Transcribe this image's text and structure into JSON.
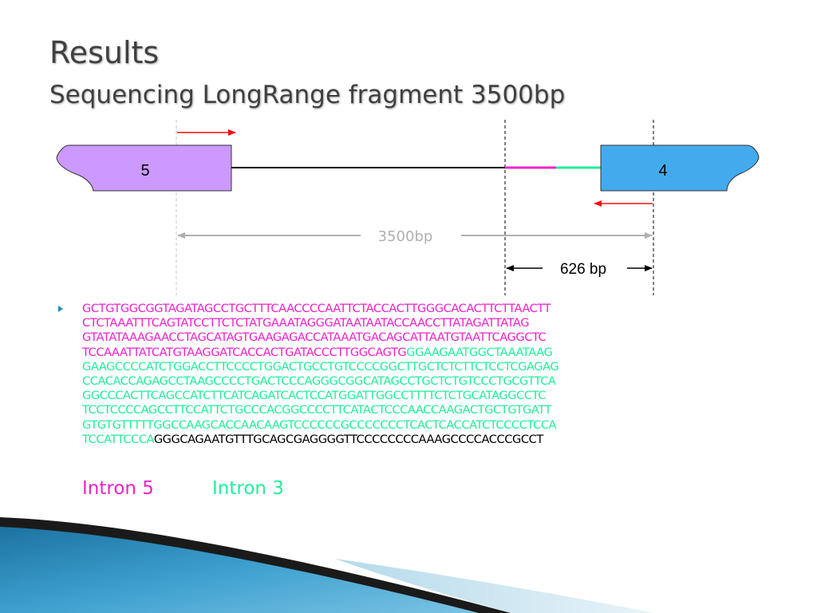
{
  "slide": {
    "title": "Results",
    "subtitle": "Sequencing LongRange fragment 3500bp"
  },
  "colors": {
    "intron5": "#ee22cc",
    "intron3": "#22ee99",
    "exon": "#000000",
    "exon5_fill": "#cc99ff",
    "exon4_fill": "#44aaee",
    "arrow": "#ee1111",
    "measure_gray": "#b0b0b0",
    "title": "#404040",
    "bullet": "#1e8fc0"
  },
  "diagram": {
    "exon_left_label": "5",
    "exon_right_label": "4",
    "span_label": "3500bp",
    "fragment_label": "626 bp"
  },
  "sequence": {
    "lines": [
      [
        {
          "t": "GCTGTGGCGGTAGATAGCCTGCTTTCAACCCCAATTCTACCACTTGGGCACACTTCTTAACTT",
          "c": "intron5"
        }
      ],
      [
        {
          "t": "CTCTAAATTTCAGTATCCTTCTCTATGAAATAGGGATAATAATACCAACCTTATAGATTATAG",
          "c": "intron5"
        }
      ],
      [
        {
          "t": "GTATATAAAGAACCTAGCATAGTGAAGAGACCATAAATGACAGCATTAATGTAATTCAGGCTC",
          "c": "intron5"
        }
      ],
      [
        {
          "t": "TCCAAATTATCATGTAAGGATCACCACTGATACCCTTGGCAGTG",
          "c": "intron5"
        },
        {
          "t": "GGAAGAATGGCTAAATAAG",
          "c": "intron3"
        }
      ],
      [
        {
          "t": "GAAGCCCCATCTGGACCTTCCCCTGGACTGCCTGTCCCCGGCTTGCTCTCTTCTCCTCGAGAG",
          "c": "intron3"
        }
      ],
      [
        {
          "t": "CCACACCAGAGCCTAAGCCCCTGACTCCCAGGGCGGCATAGCCTGCTCTGTCCCTGCGTTCA",
          "c": "intron3"
        }
      ],
      [
        {
          "t": "GGCCCACTTCAGCCATCTTCATCAGATCACTCCATGGATTGGCCTTTTCTCTGCATAGGCCTC",
          "c": "intron3"
        }
      ],
      [
        {
          "t": "TCCTCCCCAGCCTTCCATTCTGCCCACGGCCCCTTCATACTCCCAACCAAGACTGCTGTGATT",
          "c": "intron3"
        }
      ],
      [
        {
          "t": "GTGTGTTTTTGGCCAAGCACCAACAAGTCCCCCCGCCCCCCCTCACTCACCATCTCCCCTCCA",
          "c": "intron3"
        }
      ],
      [
        {
          "t": "TCCATTCCCA",
          "c": "intron3"
        },
        {
          "t": "GGGCAGAATGTTTGCAGCGAGGGGTTCCCCCCCCAAAGCCCCACCCGCCT",
          "c": "exon"
        }
      ]
    ]
  },
  "legend": {
    "intron5": "Intron 5",
    "intron3": "Intron 3"
  }
}
